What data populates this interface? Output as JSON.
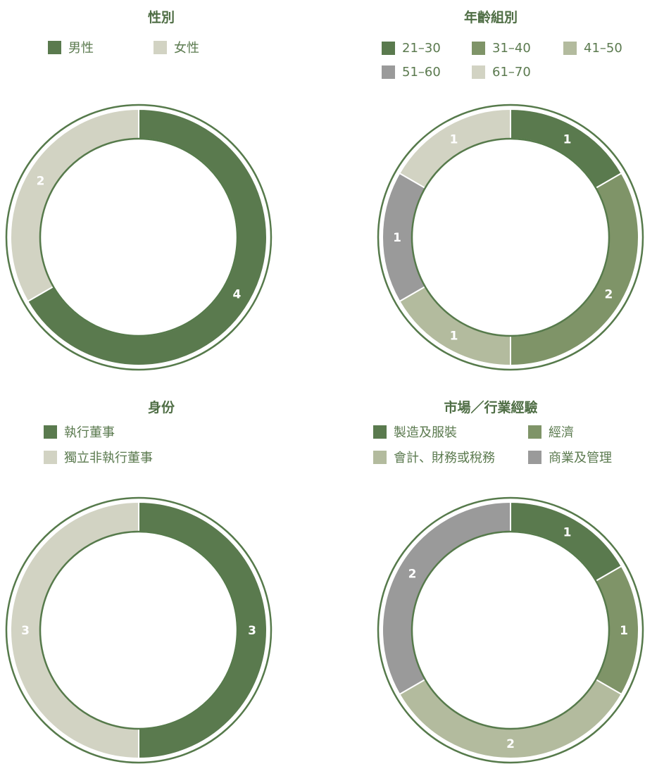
{
  "colors": {
    "dark_green": "#5a7a4e",
    "mid_green": "#7f9468",
    "sage": "#b3bb9e",
    "gray": "#9a9a9a",
    "light": "#d2d3c3",
    "outline": "#567a4b"
  },
  "chart_data": [
    {
      "type": "pie",
      "title": "性別",
      "categories": [
        "男性",
        "女性"
      ],
      "values": [
        4,
        2
      ],
      "colors": [
        "#5a7a4e",
        "#d2d3c3"
      ],
      "legend_placement": "top"
    },
    {
      "type": "pie",
      "title": "年齡組別",
      "categories": [
        "21–30",
        "31–40",
        "41–50",
        "51–60",
        "61–70"
      ],
      "values": [
        1,
        2,
        1,
        1,
        1
      ],
      "colors": [
        "#5a7a4e",
        "#7f9468",
        "#b3bb9e",
        "#9a9a9a",
        "#d2d3c3"
      ],
      "legend_placement": "top"
    },
    {
      "type": "pie",
      "title": "身份",
      "categories": [
        "執行董事",
        "獨立非執行董事"
      ],
      "values": [
        3,
        3
      ],
      "colors": [
        "#5a7a4e",
        "#d2d3c3"
      ],
      "legend_placement": "top"
    },
    {
      "type": "pie",
      "title": "市場／行業經驗",
      "categories": [
        "製造及服裝",
        "經濟",
        "會計、財務或稅務",
        "商業及管理"
      ],
      "values": [
        1,
        1,
        2,
        2
      ],
      "colors": [
        "#5a7a4e",
        "#7f9468",
        "#b3bb9e",
        "#9a9a9a"
      ],
      "legend_placement": "top"
    }
  ]
}
